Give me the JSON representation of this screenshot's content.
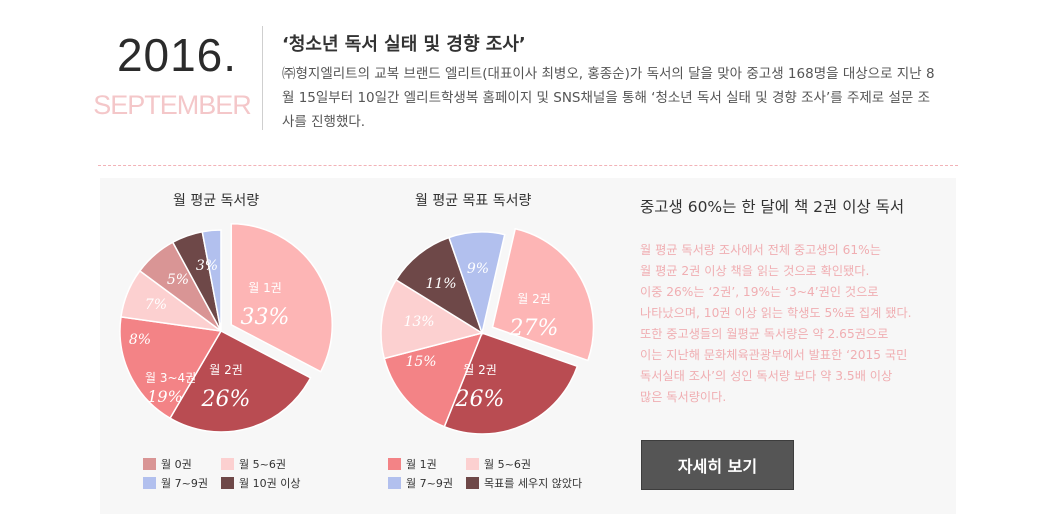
{
  "header": {
    "year": "2016.",
    "month": "SEPTEMBER",
    "title": "‘청소년 독서 실태 및 경향 조사’",
    "description": "㈜형지엘리트의 교복 브랜드 엘리트(대표이사 최병오, 홍종순)가 독서의 달을 맞아 중고생 168명을 대상으로 지난 8월 15일부터 10일간 엘리트학생복 홈페이지 및 SNS채널을 통해 ‘청소년 독서 실태 및 경향 조사’를 주제로 설문 조사를 진행했다."
  },
  "colors": {
    "pink_light": "#fdb5b5",
    "pink_pale": "#fcd0d0",
    "salmon": "#f38386",
    "rose_dark": "#b94c52",
    "brown": "#6e4848",
    "mauve": "#d99595",
    "periwinkle": "#b2c0ee",
    "accent_text": "#f0aeb2"
  },
  "chart_data": [
    {
      "type": "pie",
      "title": "월 평균 독서량",
      "slices": [
        {
          "label": "월 1권",
          "value": 33,
          "display": "33%",
          "color": "#fdb5b5"
        },
        {
          "label": "월 2권",
          "value": 26,
          "display": "26%",
          "color": "#b94c52"
        },
        {
          "label": "월 3~4권",
          "value": 19,
          "display": "19%",
          "color": "#f38386"
        },
        {
          "label": "",
          "value": 8,
          "display": "8%",
          "color": "#fcd0d0"
        },
        {
          "label": "",
          "value": 7,
          "display": "7%",
          "color": "#d99595"
        },
        {
          "label": "",
          "value": 5,
          "display": "5%",
          "color": "#6e4848"
        },
        {
          "label": "",
          "value": 3,
          "display": "3%",
          "color": "#b2c0ee"
        }
      ],
      "legend": [
        {
          "label": "월 0권",
          "color": "#d99595"
        },
        {
          "label": "월 5~6권",
          "color": "#fcd0d0"
        },
        {
          "label": "월 7~9권",
          "color": "#b2c0ee"
        },
        {
          "label": "월 10권 이상",
          "color": "#6e4848"
        }
      ]
    },
    {
      "type": "pie",
      "title": "월 평균 목표 독서량",
      "slices": [
        {
          "label": "월 2권",
          "value": 27,
          "display": "27%",
          "color": "#fdb5b5"
        },
        {
          "label": "월 2권",
          "value": 26,
          "display": "26%",
          "color": "#b94c52"
        },
        {
          "label": "",
          "value": 15,
          "display": "15%",
          "color": "#f38386"
        },
        {
          "label": "",
          "value": 13,
          "display": "13%",
          "color": "#fcd0d0"
        },
        {
          "label": "",
          "value": 11,
          "display": "11%",
          "color": "#6e4848"
        },
        {
          "label": "",
          "value": 9,
          "display": "9%",
          "color": "#b2c0ee"
        }
      ],
      "legend": [
        {
          "label": "월 1권",
          "color": "#f38386"
        },
        {
          "label": "월 5~6권",
          "color": "#fcd0d0"
        },
        {
          "label": "월 7~9권",
          "color": "#b2c0ee"
        },
        {
          "label": "목표를 세우지 않았다",
          "color": "#6e4848"
        }
      ]
    }
  ],
  "summary": {
    "title": "중고생 60%는 한 달에 책 2권 이상 독서",
    "lines": [
      "월 평균 독서량 조사에서 전체 중고생의 61%는",
      "월 평균 2권 이상 책을 읽는 것으로 확인됐다.",
      "이중 26%는 ‘2권’, 19%는 ‘3~4’권인 것으로",
      "나타났으며, 10권 이상 읽는 학생도 5%로 집계 됐다.",
      "또한 중고생들의 월평균 독서량은 약 2.65권으로",
      "이는 지난해 문화체육관광부에서 발표한 ‘2015 국민",
      "독서실태 조사’의 성인 독서량 보다 약 3.5배 이상",
      "많은 독서량이다."
    ],
    "button_label": "자세히 보기"
  }
}
